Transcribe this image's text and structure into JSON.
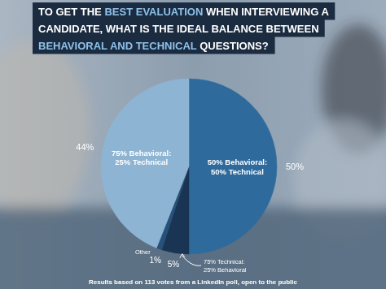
{
  "chart_data": {
    "type": "pie",
    "title": "TO GET THE BEST EVALUATION WHEN INTERVIEWING A CANDIDATE, WHAT IS THE IDEAL BALANCE BETWEEN BEHAVIORAL AND TECHNICAL QUESTIONS?",
    "title_highlights": [
      "BEST EVALUATION",
      "BEHAVIORAL AND TECHNICAL"
    ],
    "categories": [
      "50% Behavioral: 50% Technical",
      "75% Technical: 25% Behavioral",
      "Other",
      "75% Behavioral: 25% Technical"
    ],
    "values": [
      50,
      5,
      1,
      44
    ],
    "value_labels": [
      "50%",
      "5%",
      "1%",
      "44%"
    ],
    "colors": [
      "#2f6a9c",
      "#1a3553",
      "#27507a",
      "#8db4d3"
    ],
    "data_labels": true,
    "note": "Results based on 113 votes from a LinkedIn poll, open to the public"
  }
}
